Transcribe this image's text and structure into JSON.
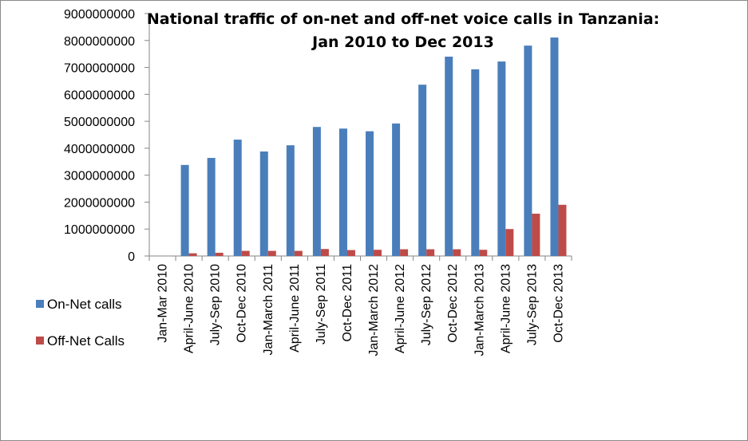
{
  "chart_data": {
    "type": "bar",
    "title": "National traffic of on-net and off-net voice calls in Tanzania:",
    "subtitle": "Jan 2010 to Dec 2013",
    "xlabel": "",
    "ylabel": "",
    "ylim": [
      0,
      9000000000
    ],
    "y_ticks": [
      0,
      1000000000,
      2000000000,
      3000000000,
      4000000000,
      5000000000,
      6000000000,
      7000000000,
      8000000000,
      9000000000
    ],
    "y_tick_labels": [
      "0",
      "1000000000",
      "2000000000",
      "3000000000",
      "4000000000",
      "5000000000",
      "6000000000",
      "7000000000",
      "8000000000",
      "9000000000"
    ],
    "grid": false,
    "legend_position": "left",
    "categories": [
      "Jan-Mar 2010",
      "April-June 2010",
      "July-Sep 2010",
      "Oct-Dec 2010",
      "Jan-March 2011",
      "April-June 2011",
      "July-Sep 2011",
      "Oct-Dec 2011",
      "Jan-March 2012",
      "April-June 2012",
      "July-Sep 2012",
      "Oct-Dec  2012",
      "Jan-March 2013",
      "April-June 2013",
      "July-Sep 2013",
      "Oct-Dec 2013"
    ],
    "series": [
      {
        "name": "On-Net calls",
        "color": "#4a7ebb",
        "values": [
          0,
          3380000000,
          3640000000,
          4320000000,
          3880000000,
          4110000000,
          4790000000,
          4730000000,
          4630000000,
          4920000000,
          6360000000,
          7400000000,
          6930000000,
          7220000000,
          7810000000,
          8110000000
        ]
      },
      {
        "name": "Off-Net Calls",
        "color": "#be4b48",
        "values": [
          0,
          100000000,
          120000000,
          190000000,
          190000000,
          190000000,
          260000000,
          220000000,
          230000000,
          250000000,
          250000000,
          250000000,
          230000000,
          1000000000,
          1570000000,
          1900000000
        ]
      }
    ]
  }
}
